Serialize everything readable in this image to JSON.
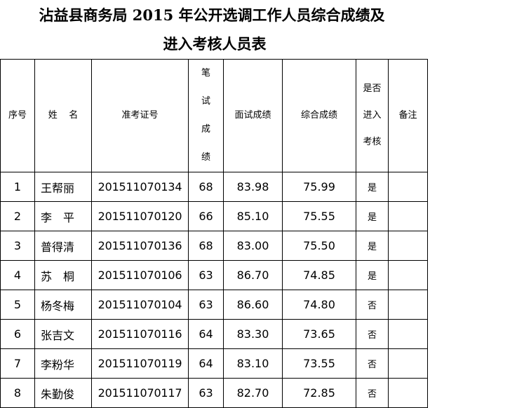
{
  "title": {
    "line1": "沾益县商务局 2015 年公开选调工作人员综合成绩及",
    "line2": "进入考核人员表"
  },
  "headers": {
    "seq": "序号",
    "name": "姓    名",
    "id": "准考证号",
    "written": "笔试成绩",
    "interview": "面试成绩",
    "total": "综合成绩",
    "advance": "是否进入考核",
    "remark": "备注"
  },
  "rows": [
    {
      "seq": "1",
      "name": "王帮丽",
      "id": "201511070134",
      "written": "68",
      "interview": "83.98",
      "total": "75.99",
      "advance": "是",
      "remark": ""
    },
    {
      "seq": "2",
      "name": "李　平",
      "id": "201511070120",
      "written": "66",
      "interview": "85.10",
      "total": "75.55",
      "advance": "是",
      "remark": ""
    },
    {
      "seq": "3",
      "name": "普得清",
      "id": "201511070136",
      "written": "68",
      "interview": "83.00",
      "total": "75.50",
      "advance": "是",
      "remark": ""
    },
    {
      "seq": "4",
      "name": "苏　桐",
      "id": "201511070106",
      "written": "63",
      "interview": "86.70",
      "total": "74.85",
      "advance": "是",
      "remark": ""
    },
    {
      "seq": "5",
      "name": "杨冬梅",
      "id": "201511070104",
      "written": "63",
      "interview": "86.60",
      "total": "74.80",
      "advance": "否",
      "remark": ""
    },
    {
      "seq": "6",
      "name": "张吉文",
      "id": "201511070116",
      "written": "64",
      "interview": "83.30",
      "total": "73.65",
      "advance": "否",
      "remark": ""
    },
    {
      "seq": "7",
      "name": "李粉华",
      "id": "201511070119",
      "written": "64",
      "interview": "83.10",
      "total": "73.55",
      "advance": "否",
      "remark": ""
    },
    {
      "seq": "8",
      "name": "朱勤俊",
      "id": "201511070117",
      "written": "63",
      "interview": "82.70",
      "total": "72.85",
      "advance": "否",
      "remark": ""
    }
  ]
}
